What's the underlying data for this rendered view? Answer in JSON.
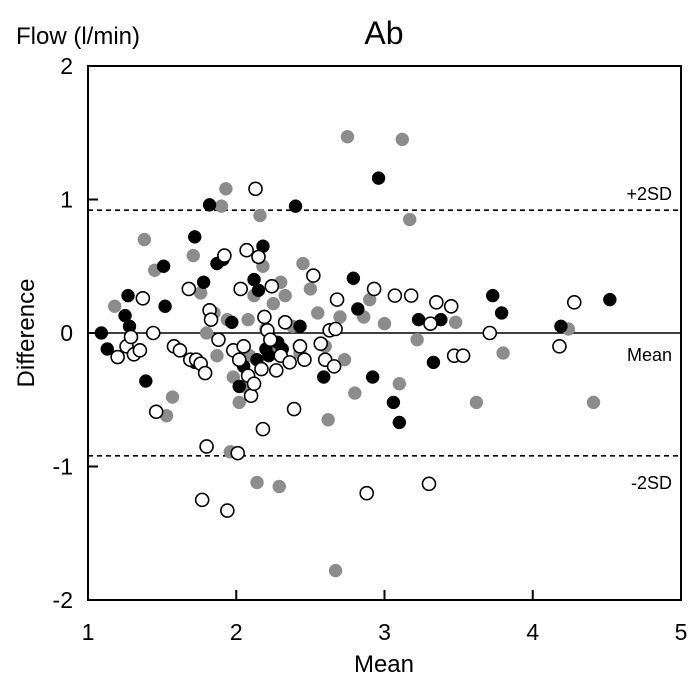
{
  "chart_data": {
    "type": "scatter",
    "title": "Ab",
    "unit_label": "Flow (l/min)",
    "xlabel": "Mean",
    "ylabel": "Difference",
    "xlim": [
      1,
      5
    ],
    "ylim": [
      -2,
      2
    ],
    "x_ticks": [
      1,
      2,
      3,
      4,
      5
    ],
    "y_ticks": [
      -2,
      -1,
      0,
      1,
      2
    ],
    "x_tick_labels": [
      "1",
      "2",
      "3",
      "4",
      "5"
    ],
    "y_tick_labels": [
      "-2",
      "-1",
      "0",
      "1",
      "2"
    ],
    "grid": false,
    "reference_lines": [
      {
        "label": "+2SD",
        "y": 0.92,
        "style": "dashed"
      },
      {
        "label": "Mean",
        "y": 0.0,
        "style": "solid"
      },
      {
        "label": "-2SD",
        "y": -0.92,
        "style": "dashed"
      }
    ],
    "series": [
      {
        "marker": "filled-black",
        "color": "#000000",
        "points": [
          [
            1.09,
            0.0
          ],
          [
            1.13,
            -0.12
          ],
          [
            1.25,
            0.13
          ],
          [
            1.27,
            0.28
          ],
          [
            1.28,
            0.05
          ],
          [
            1.31,
            -0.15
          ],
          [
            1.39,
            -0.36
          ],
          [
            1.51,
            0.5
          ],
          [
            1.52,
            0.2
          ],
          [
            1.72,
            0.72
          ],
          [
            1.72,
            -0.22
          ],
          [
            1.78,
            0.38
          ],
          [
            1.82,
            0.96
          ],
          [
            1.87,
            0.52
          ],
          [
            1.91,
            0.55
          ],
          [
            1.97,
            0.08
          ],
          [
            2.02,
            -0.4
          ],
          [
            2.05,
            -0.25
          ],
          [
            2.12,
            0.4
          ],
          [
            2.14,
            -0.2
          ],
          [
            2.15,
            0.32
          ],
          [
            2.18,
            0.65
          ],
          [
            2.2,
            -0.12
          ],
          [
            2.22,
            -0.17
          ],
          [
            2.27,
            -0.28
          ],
          [
            2.28,
            -0.07
          ],
          [
            2.31,
            -0.12
          ],
          [
            2.4,
            0.95
          ],
          [
            2.43,
            0.05
          ],
          [
            2.59,
            -0.33
          ],
          [
            2.79,
            0.41
          ],
          [
            2.82,
            0.18
          ],
          [
            2.92,
            -0.33
          ],
          [
            2.96,
            1.16
          ],
          [
            3.06,
            -0.52
          ],
          [
            3.1,
            -0.67
          ],
          [
            3.23,
            0.1
          ],
          [
            3.33,
            -0.22
          ],
          [
            3.38,
            0.1
          ],
          [
            3.73,
            0.28
          ],
          [
            3.79,
            0.15
          ],
          [
            4.19,
            0.05
          ],
          [
            4.52,
            0.25
          ]
        ]
      },
      {
        "marker": "filled-gray",
        "color": "#8c8c8c",
        "points": [
          [
            1.18,
            0.2
          ],
          [
            1.38,
            0.7
          ],
          [
            1.45,
            0.47
          ],
          [
            1.53,
            -0.62
          ],
          [
            1.57,
            -0.48
          ],
          [
            1.71,
            0.58
          ],
          [
            1.76,
            0.3
          ],
          [
            1.8,
            0.0
          ],
          [
            1.85,
            0.15
          ],
          [
            1.87,
            -0.17
          ],
          [
            1.9,
            0.95
          ],
          [
            1.93,
            1.08
          ],
          [
            1.94,
            0.1
          ],
          [
            1.96,
            -0.89
          ],
          [
            1.98,
            -0.33
          ],
          [
            2.02,
            -0.52
          ],
          [
            2.05,
            -0.4
          ],
          [
            2.08,
            0.1
          ],
          [
            2.09,
            -0.17
          ],
          [
            2.12,
            0.28
          ],
          [
            2.14,
            -1.12
          ],
          [
            2.16,
            0.88
          ],
          [
            2.18,
            0.5
          ],
          [
            2.2,
            0.03
          ],
          [
            2.22,
            -0.12
          ],
          [
            2.25,
            0.22
          ],
          [
            2.29,
            -1.15
          ],
          [
            2.3,
            0.38
          ],
          [
            2.33,
            0.28
          ],
          [
            2.38,
            0.05
          ],
          [
            2.43,
            -0.15
          ],
          [
            2.45,
            0.52
          ],
          [
            2.5,
            0.33
          ],
          [
            2.55,
            0.15
          ],
          [
            2.6,
            -0.1
          ],
          [
            2.62,
            -0.65
          ],
          [
            2.67,
            -1.78
          ],
          [
            2.7,
            0.12
          ],
          [
            2.73,
            -0.2
          ],
          [
            2.75,
            1.47
          ],
          [
            2.8,
            -0.45
          ],
          [
            2.86,
            0.12
          ],
          [
            2.9,
            0.25
          ],
          [
            3.0,
            0.07
          ],
          [
            3.1,
            -0.38
          ],
          [
            3.12,
            1.45
          ],
          [
            3.17,
            0.85
          ],
          [
            3.22,
            -0.05
          ],
          [
            3.48,
            0.08
          ],
          [
            3.62,
            -0.52
          ],
          [
            3.8,
            -0.15
          ],
          [
            4.24,
            0.03
          ],
          [
            4.41,
            -0.52
          ]
        ]
      },
      {
        "marker": "open-circle",
        "color": "#ffffff",
        "points": [
          [
            1.2,
            -0.18
          ],
          [
            1.26,
            -0.1
          ],
          [
            1.29,
            -0.03
          ],
          [
            1.31,
            -0.16
          ],
          [
            1.35,
            -0.13
          ],
          [
            1.37,
            0.26
          ],
          [
            1.44,
            0.0
          ],
          [
            1.46,
            -0.59
          ],
          [
            1.58,
            -0.1
          ],
          [
            1.62,
            -0.13
          ],
          [
            1.68,
            0.33
          ],
          [
            1.69,
            -0.2
          ],
          [
            1.73,
            -0.2
          ],
          [
            1.76,
            -0.23
          ],
          [
            1.77,
            -1.25
          ],
          [
            1.79,
            -0.3
          ],
          [
            1.8,
            -0.85
          ],
          [
            1.82,
            0.17
          ],
          [
            1.83,
            0.1
          ],
          [
            1.88,
            -0.05
          ],
          [
            1.92,
            0.58
          ],
          [
            1.94,
            -1.33
          ],
          [
            1.98,
            -0.13
          ],
          [
            2.01,
            -0.9
          ],
          [
            2.02,
            -0.2
          ],
          [
            2.03,
            0.33
          ],
          [
            2.05,
            -0.1
          ],
          [
            2.07,
            0.62
          ],
          [
            2.08,
            -0.32
          ],
          [
            2.1,
            -0.47
          ],
          [
            2.12,
            -0.38
          ],
          [
            2.13,
            1.08
          ],
          [
            2.15,
            0.57
          ],
          [
            2.17,
            -0.27
          ],
          [
            2.18,
            -0.72
          ],
          [
            2.19,
            0.12
          ],
          [
            2.21,
            0.02
          ],
          [
            2.23,
            -0.05
          ],
          [
            2.24,
            0.35
          ],
          [
            2.27,
            -0.28
          ],
          [
            2.3,
            -0.17
          ],
          [
            2.33,
            0.08
          ],
          [
            2.36,
            -0.22
          ],
          [
            2.39,
            -0.57
          ],
          [
            2.43,
            -0.1
          ],
          [
            2.46,
            -0.2
          ],
          [
            2.52,
            0.43
          ],
          [
            2.57,
            -0.08
          ],
          [
            2.6,
            -0.2
          ],
          [
            2.63,
            0.02
          ],
          [
            2.66,
            -0.25
          ],
          [
            2.68,
            0.25
          ],
          [
            2.67,
            0.03
          ],
          [
            2.88,
            -1.2
          ],
          [
            2.93,
            0.33
          ],
          [
            3.07,
            0.28
          ],
          [
            3.18,
            0.28
          ],
          [
            3.3,
            -1.13
          ],
          [
            3.31,
            0.07
          ],
          [
            3.35,
            0.23
          ],
          [
            3.45,
            0.2
          ],
          [
            3.47,
            -0.17
          ],
          [
            3.53,
            -0.17
          ],
          [
            3.71,
            0.0
          ],
          [
            4.18,
            -0.1
          ],
          [
            4.28,
            0.23
          ]
        ]
      }
    ]
  }
}
